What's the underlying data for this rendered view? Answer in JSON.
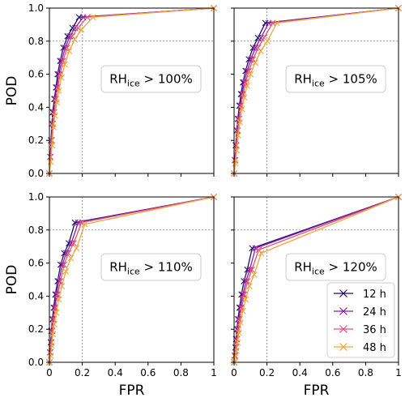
{
  "colors": {
    "12 h": "#1f0c6e",
    "24 h": "#8b1fa8",
    "36 h": "#e0507a",
    "48 h": "#f6a33a",
    "ref_line": "#a0a0a0"
  },
  "legend": {
    "placement": "lower-right",
    "panel": 3
  },
  "reference": {
    "fpr": 0.2,
    "pod": 0.8
  },
  "chart_data": [
    {
      "type": "line",
      "annotation": {
        "main": "RH",
        "sub": "ice",
        "rest": " > 100%"
      },
      "xlabel": "",
      "ylabel": "POD",
      "xlim": [
        0,
        1
      ],
      "ylim": [
        0,
        1.0
      ],
      "xticks": [],
      "yticks": [
        "0.0",
        "0.2",
        "0.4",
        "0.6",
        "0.8",
        "1.0"
      ],
      "grid": false,
      "series": [
        {
          "name": "12 h",
          "x": [
            0,
            0.005,
            0.01,
            0.015,
            0.02,
            0.03,
            0.04,
            0.05,
            0.065,
            0.085,
            0.11,
            0.14,
            0.18,
            1
          ],
          "y": [
            0,
            0.1,
            0.2,
            0.3,
            0.37,
            0.45,
            0.52,
            0.6,
            0.68,
            0.76,
            0.83,
            0.88,
            0.945,
            1
          ]
        },
        {
          "name": "24 h",
          "x": [
            0,
            0.006,
            0.012,
            0.018,
            0.025,
            0.035,
            0.045,
            0.057,
            0.074,
            0.096,
            0.124,
            0.156,
            0.205,
            1
          ],
          "y": [
            0,
            0.1,
            0.2,
            0.3,
            0.37,
            0.45,
            0.52,
            0.6,
            0.68,
            0.76,
            0.83,
            0.88,
            0.945,
            1
          ]
        },
        {
          "name": "36 h",
          "x": [
            0,
            0.007,
            0.014,
            0.021,
            0.029,
            0.04,
            0.051,
            0.065,
            0.083,
            0.107,
            0.138,
            0.174,
            0.23,
            1
          ],
          "y": [
            0,
            0.1,
            0.2,
            0.3,
            0.37,
            0.45,
            0.52,
            0.6,
            0.68,
            0.76,
            0.83,
            0.88,
            0.945,
            1
          ]
        },
        {
          "name": "48 h",
          "x": [
            0,
            0.008,
            0.016,
            0.024,
            0.033,
            0.045,
            0.057,
            0.073,
            0.093,
            0.12,
            0.154,
            0.195,
            0.265,
            1
          ],
          "y": [
            0,
            0.07,
            0.17,
            0.28,
            0.35,
            0.43,
            0.5,
            0.58,
            0.66,
            0.74,
            0.81,
            0.87,
            0.945,
            1
          ]
        }
      ]
    },
    {
      "type": "line",
      "annotation": {
        "main": "RH",
        "sub": "ice",
        "rest": " > 105%"
      },
      "xlabel": "",
      "ylabel": "",
      "xlim": [
        0,
        1
      ],
      "ylim": [
        0,
        1.0
      ],
      "xticks": [],
      "yticks": [],
      "grid": false,
      "series": [
        {
          "name": "12 h",
          "x": [
            0,
            0.005,
            0.01,
            0.016,
            0.023,
            0.032,
            0.042,
            0.054,
            0.07,
            0.09,
            0.115,
            0.145,
            0.19,
            1
          ],
          "y": [
            0,
            0.08,
            0.17,
            0.26,
            0.33,
            0.41,
            0.48,
            0.55,
            0.62,
            0.69,
            0.76,
            0.82,
            0.91,
            1
          ]
        },
        {
          "name": "24 h",
          "x": [
            0,
            0.006,
            0.012,
            0.019,
            0.027,
            0.037,
            0.048,
            0.062,
            0.08,
            0.102,
            0.13,
            0.163,
            0.21,
            1
          ],
          "y": [
            0,
            0.08,
            0.17,
            0.26,
            0.33,
            0.41,
            0.48,
            0.55,
            0.62,
            0.69,
            0.76,
            0.82,
            0.91,
            1
          ]
        },
        {
          "name": "36 h",
          "x": [
            0,
            0.007,
            0.014,
            0.022,
            0.031,
            0.042,
            0.055,
            0.07,
            0.09,
            0.115,
            0.146,
            0.182,
            0.235,
            1
          ],
          "y": [
            0,
            0.08,
            0.17,
            0.26,
            0.33,
            0.41,
            0.48,
            0.55,
            0.62,
            0.69,
            0.76,
            0.82,
            0.91,
            1
          ]
        },
        {
          "name": "48 h",
          "x": [
            0,
            0.008,
            0.016,
            0.025,
            0.035,
            0.048,
            0.062,
            0.079,
            0.1,
            0.128,
            0.162,
            0.202,
            0.26,
            1
          ],
          "y": [
            0,
            0.06,
            0.14,
            0.23,
            0.31,
            0.39,
            0.46,
            0.53,
            0.6,
            0.67,
            0.74,
            0.8,
            0.91,
            1
          ]
        }
      ]
    },
    {
      "type": "line",
      "annotation": {
        "main": "RH",
        "sub": "ice",
        "rest": " > 110%"
      },
      "xlabel": "FPR",
      "ylabel": "POD",
      "xlim": [
        0,
        1
      ],
      "ylim": [
        0,
        1.0
      ],
      "xticks": [
        "0",
        "0.2",
        "0.4",
        "0.6",
        "0.8",
        "1"
      ],
      "yticks": [
        "0.0",
        "0.2",
        "0.4",
        "0.6",
        "0.8",
        "1.0"
      ],
      "grid": false,
      "series": [
        {
          "name": "12 h",
          "x": [
            0,
            0.004,
            0.008,
            0.012,
            0.018,
            0.026,
            0.036,
            0.05,
            0.068,
            0.09,
            0.118,
            0.155,
            1
          ],
          "y": [
            0,
            0.06,
            0.12,
            0.19,
            0.26,
            0.33,
            0.41,
            0.49,
            0.59,
            0.66,
            0.72,
            0.845,
            1
          ]
        },
        {
          "name": "24 h",
          "x": [
            0,
            0.005,
            0.01,
            0.015,
            0.022,
            0.031,
            0.043,
            0.058,
            0.078,
            0.102,
            0.133,
            0.175,
            1
          ],
          "y": [
            0,
            0.06,
            0.12,
            0.19,
            0.26,
            0.33,
            0.41,
            0.49,
            0.59,
            0.66,
            0.72,
            0.845,
            1
          ]
        },
        {
          "name": "36 h",
          "x": [
            0,
            0.006,
            0.012,
            0.018,
            0.026,
            0.037,
            0.05,
            0.067,
            0.089,
            0.115,
            0.148,
            0.195,
            1
          ],
          "y": [
            0,
            0.06,
            0.12,
            0.19,
            0.26,
            0.33,
            0.41,
            0.49,
            0.59,
            0.66,
            0.72,
            0.845,
            1
          ]
        },
        {
          "name": "48 h",
          "x": [
            0,
            0.007,
            0.014,
            0.021,
            0.03,
            0.042,
            0.057,
            0.076,
            0.1,
            0.13,
            0.165,
            0.215,
            1
          ],
          "y": [
            0,
            0.04,
            0.1,
            0.17,
            0.23,
            0.3,
            0.38,
            0.46,
            0.55,
            0.63,
            0.69,
            0.835,
            1
          ]
        }
      ]
    },
    {
      "type": "line",
      "annotation": {
        "main": "RH",
        "sub": "ice",
        "rest": " > 120%"
      },
      "xlabel": "FPR",
      "ylabel": "",
      "xlim": [
        0,
        1
      ],
      "ylim": [
        0,
        1.0
      ],
      "xticks": [
        "0",
        "0.2",
        "0.4",
        "0.6",
        "0.8",
        "1"
      ],
      "yticks": [],
      "grid": false,
      "series": [
        {
          "name": "12 h",
          "x": [
            0,
            0.004,
            0.008,
            0.012,
            0.017,
            0.024,
            0.033,
            0.045,
            0.06,
            0.08,
            0.11,
            1
          ],
          "y": [
            0,
            0.04,
            0.09,
            0.14,
            0.2,
            0.26,
            0.33,
            0.41,
            0.49,
            0.56,
            0.69,
            1
          ]
        },
        {
          "name": "24 h",
          "x": [
            0,
            0.005,
            0.01,
            0.015,
            0.021,
            0.029,
            0.04,
            0.054,
            0.072,
            0.095,
            0.13,
            1
          ],
          "y": [
            0,
            0.04,
            0.09,
            0.14,
            0.2,
            0.26,
            0.33,
            0.41,
            0.49,
            0.56,
            0.69,
            1
          ]
        },
        {
          "name": "36 h",
          "x": [
            0,
            0.006,
            0.012,
            0.018,
            0.025,
            0.034,
            0.046,
            0.062,
            0.082,
            0.108,
            0.15,
            1
          ],
          "y": [
            0,
            0.04,
            0.09,
            0.14,
            0.2,
            0.26,
            0.33,
            0.41,
            0.49,
            0.56,
            0.68,
            1
          ]
        },
        {
          "name": "48 h",
          "x": [
            0,
            0.007,
            0.014,
            0.021,
            0.029,
            0.039,
            0.053,
            0.07,
            0.093,
            0.122,
            0.165,
            1
          ],
          "y": [
            0,
            0.03,
            0.07,
            0.12,
            0.18,
            0.24,
            0.31,
            0.38,
            0.46,
            0.53,
            0.66,
            1
          ]
        }
      ]
    }
  ]
}
